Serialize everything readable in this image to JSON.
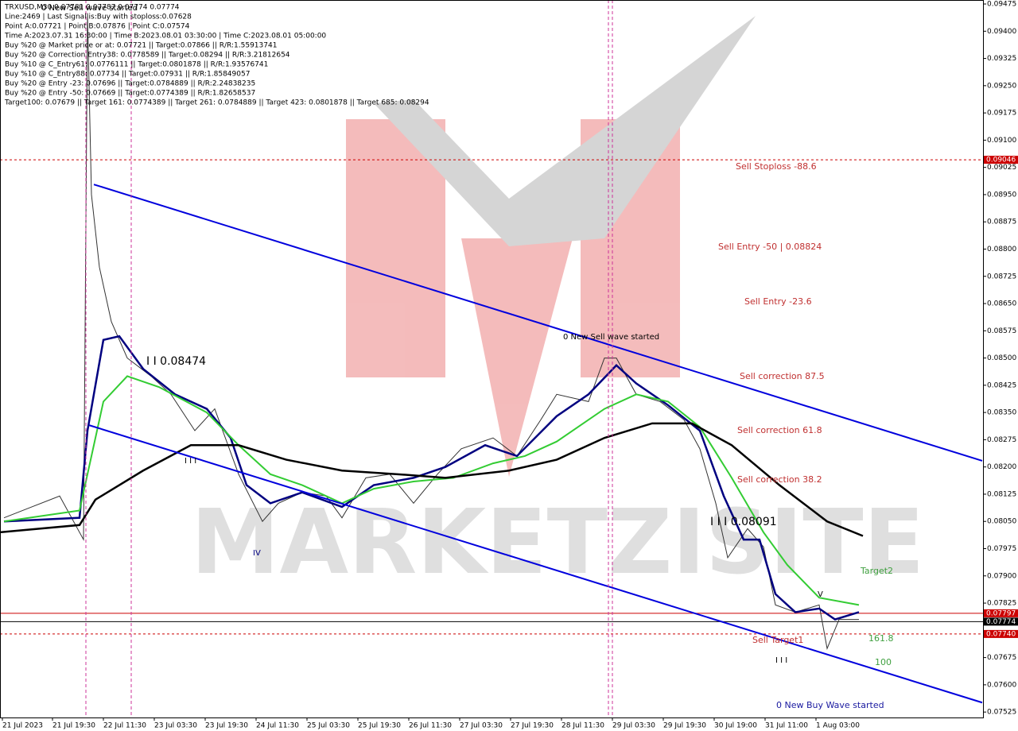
{
  "chart_data": {
    "type": "line",
    "info_lines": [
      "TRXUSD,M30  0.07781 0.07787 0.07774 0.07774",
      "Line:2469 | Last Signal is:Buy with stoploss:0.07628",
      "Point A:0.07721 | Point B:0.07876 | Point C:0.07574",
      "Time A:2023.07.31 16:30:00 | Time B:2023.08.01 03:30:00 | Time C:2023.08.01 05:00:00",
      "Buy %20 @ Market price or at: 0.07721 || Target:0.07866 || R/R:1.55913741",
      "Buy %20 @ Correction Entry38: 0.0778589 || Target:0.08294 || R/R:3.21812654",
      "Buy %10 @ C_Entry61: 0.0776111 || Target:0.0801878 || R/R:1.93576741",
      "Buy %10 @ C_Entry88: 0.07734 || Target:0.07931 || R/R:1.85849057",
      "Buy %20 @ Entry -23: 0.07696 || Target:0.0784889 || R/R:2.24838235",
      "Buy %20 @ Entry -50: 0.07669 || Target:0.0774389 || R/R:1.82658537",
      "Target100: 0.07679 || Target 161: 0.0774389 || Target 261: 0.0784889 || Target 423: 0.0801878 || Target 685: 0.08294"
    ],
    "watermark": "MARKETZISITE",
    "xlim": [
      0,
      618
    ],
    "xticks": [
      {
        "value": 1.5,
        "label": "21 Jul 2023"
      },
      {
        "value": 33,
        "label": "21 Jul 19:30"
      },
      {
        "value": 65,
        "label": "22 Jul 11:30"
      },
      {
        "value": 97,
        "label": "23 Jul 03:30"
      },
      {
        "value": 129,
        "label": "23 Jul 19:30"
      },
      {
        "value": 161,
        "label": "24 Jul 11:30"
      },
      {
        "value": 193,
        "label": "25 Jul 03:30"
      },
      {
        "value": 225,
        "label": "25 Jul 19:30"
      },
      {
        "value": 257,
        "label": "26 Jul 11:30"
      },
      {
        "value": 289,
        "label": "27 Jul 03:30"
      },
      {
        "value": 321,
        "label": "27 Jul 19:30"
      },
      {
        "value": 353,
        "label": "28 Jul 11:30"
      },
      {
        "value": 385,
        "label": "29 Jul 03:30"
      },
      {
        "value": 417,
        "label": "29 Jul 19:30"
      },
      {
        "value": 449,
        "label": "30 Jul 19:00"
      },
      {
        "value": 481,
        "label": "31 Jul 11:00"
      },
      {
        "value": 513,
        "label": "1 Aug 03:00"
      }
    ],
    "ylim": [
      0.0751,
      0.09486
    ],
    "yticks": [
      {
        "value": 0.09475,
        "label": "0.09475"
      },
      {
        "value": 0.094,
        "label": "0.09400"
      },
      {
        "value": 0.09325,
        "label": "0.09325"
      },
      {
        "value": 0.0925,
        "label": "0.09250"
      },
      {
        "value": 0.09175,
        "label": "0.09175"
      },
      {
        "value": 0.091,
        "label": "0.09100"
      },
      {
        "value": 0.09025,
        "label": "0.09025"
      },
      {
        "value": 0.0895,
        "label": "0.08950"
      },
      {
        "value": 0.08875,
        "label": "0.08875"
      },
      {
        "value": 0.088,
        "label": "0.08800"
      },
      {
        "value": 0.08725,
        "label": "0.08725"
      },
      {
        "value": 0.0865,
        "label": "0.08650"
      },
      {
        "value": 0.08575,
        "label": "0.08575"
      },
      {
        "value": 0.085,
        "label": "0.08500"
      },
      {
        "value": 0.08425,
        "label": "0.08425"
      },
      {
        "value": 0.0835,
        "label": "0.08350"
      },
      {
        "value": 0.08275,
        "label": "0.08275"
      },
      {
        "value": 0.082,
        "label": "0.08200"
      },
      {
        "value": 0.08125,
        "label": "0.08125"
      },
      {
        "value": 0.0805,
        "label": "0.08050"
      },
      {
        "value": 0.07975,
        "label": "0.07975"
      },
      {
        "value": 0.079,
        "label": "0.07900"
      },
      {
        "value": 0.07825,
        "label": "0.07825"
      },
      {
        "value": 0.07675,
        "label": "0.07675"
      },
      {
        "value": 0.076,
        "label": "0.07600"
      },
      {
        "value": 0.07525,
        "label": "0.07525"
      }
    ],
    "series": [
      {
        "color": "#333333",
        "width": 1,
        "x": [
          2.5,
          20,
          37.5,
          52.5,
          55,
          57.5,
          62.5,
          70,
          80,
          95,
          107.5,
          122.5,
          135,
          150,
          165,
          175,
          190,
          205,
          215,
          230,
          245,
          260,
          275,
          290,
          310,
          325,
          340,
          350,
          370,
          380,
          387.5,
          400,
          415,
          430,
          440,
          450,
          457.5,
          470,
          480,
          487.5,
          500,
          515,
          520,
          527.5,
          540
        ],
        "values": [
          0.0806,
          0.0809,
          0.0812,
          0.08,
          0.0945,
          0.0895,
          0.0875,
          0.086,
          0.085,
          0.0845,
          0.084,
          0.083,
          0.0836,
          0.0818,
          0.0805,
          0.081,
          0.0813,
          0.0812,
          0.0806,
          0.0817,
          0.0818,
          0.081,
          0.0818,
          0.0825,
          0.0828,
          0.0823,
          0.0833,
          0.084,
          0.0838,
          0.085,
          0.085,
          0.084,
          0.0838,
          0.0833,
          0.0825,
          0.081,
          0.0795,
          0.0803,
          0.0798,
          0.0782,
          0.078,
          0.0782,
          0.077,
          0.0778,
          0.0778
        ]
      },
      {
        "color": "#000080",
        "width": 2.5,
        "x": [
          2.5,
          50,
          55,
          65,
          75,
          90,
          110,
          130,
          145,
          155,
          170,
          190,
          215,
          235,
          260,
          280,
          305,
          325,
          350,
          370,
          387.5,
          400,
          420,
          440,
          455,
          467.5,
          477.5,
          487.5,
          500,
          515,
          525,
          540
        ],
        "values": [
          0.0805,
          0.0806,
          0.083,
          0.0855,
          0.0856,
          0.0847,
          0.084,
          0.0836,
          0.0828,
          0.0815,
          0.081,
          0.0813,
          0.0809,
          0.0815,
          0.0817,
          0.082,
          0.0826,
          0.0823,
          0.0834,
          0.084,
          0.0848,
          0.0843,
          0.0837,
          0.083,
          0.0812,
          0.08,
          0.08,
          0.0785,
          0.078,
          0.0781,
          0.0778,
          0.078
        ]
      },
      {
        "color": "#33cc33",
        "width": 2,
        "x": [
          2.5,
          50,
          65,
          80,
          100,
          130,
          150,
          170,
          190,
          215,
          235,
          260,
          285,
          310,
          330,
          350,
          380,
          400,
          420,
          440,
          460,
          480,
          495,
          515,
          540
        ],
        "values": [
          0.0805,
          0.0808,
          0.0838,
          0.0845,
          0.0842,
          0.0835,
          0.0826,
          0.0818,
          0.0815,
          0.081,
          0.0814,
          0.0816,
          0.0817,
          0.0821,
          0.0823,
          0.0827,
          0.0836,
          0.084,
          0.0838,
          0.0831,
          0.0817,
          0.0802,
          0.0793,
          0.0784,
          0.0782
        ]
      },
      {
        "color": "#000000",
        "width": 2.5,
        "x": [
          0,
          50,
          60,
          90,
          120,
          150,
          180,
          215,
          250,
          280,
          320,
          350,
          380,
          410,
          435,
          460,
          490,
          520,
          542.5
        ],
        "values": [
          0.0802,
          0.0804,
          0.0811,
          0.0819,
          0.0826,
          0.0826,
          0.0822,
          0.0819,
          0.0818,
          0.0817,
          0.0819,
          0.0822,
          0.0828,
          0.0832,
          0.0832,
          0.0826,
          0.0815,
          0.0805,
          0.0801
        ]
      },
      {
        "color": "#0000dd",
        "width": 2,
        "x": [
          59,
          617.5
        ],
        "values": [
          0.08978,
          0.08217
        ]
      },
      {
        "color": "#0000dd",
        "width": 2,
        "x": [
          56,
          617.5
        ],
        "values": [
          0.08315,
          0.07551
        ]
      }
    ],
    "levels": [
      {
        "value": 0.09046,
        "label": "0.09046",
        "color": "#cc0000",
        "dash": true
      },
      {
        "value": 0.07797,
        "label": "0.07797",
        "color": "#cc0000",
        "dash": false
      },
      {
        "value": 0.07774,
        "label": "0.07774",
        "color": "#000000",
        "dash": false
      },
      {
        "value": 0.0774,
        "label": "0.07740",
        "color": "#cc0000",
        "dash": true
      }
    ],
    "annotations": [
      {
        "text": "Sell Stoploss -88.6",
        "color": "#c03030"
      },
      {
        "text": "Sell Entry -50 | 0.08824",
        "color": "#c03030"
      },
      {
        "text": "Sell Entry -23.6",
        "color": "#c03030"
      },
      {
        "text": "Sell correction 87.5",
        "color": "#c03030"
      },
      {
        "text": "Sell correction 61.8",
        "color": "#c03030"
      },
      {
        "text": "Sell correction 38.2",
        "color": "#c03030"
      },
      {
        "text": "Target2",
        "color": "#40a040"
      },
      {
        "text": "161.8",
        "color": "#40a040"
      },
      {
        "text": "100",
        "color": "#40a040"
      },
      {
        "text": "Sell Target1",
        "color": "#c03030"
      },
      {
        "text": "0 New Buy Wave started",
        "color": "#1a1aa0"
      },
      {
        "text": "0 New Sell wave started",
        "color": "#000000"
      },
      {
        "text": "0 New Sell wave started",
        "color": "#000000"
      },
      {
        "text": "I I 0.08474",
        "color": "#000000"
      },
      {
        "text": "I I I 0.08091",
        "color": "#000000"
      },
      {
        "text": "I I I",
        "color": "#000000"
      },
      {
        "text": "IV",
        "color": "#000080"
      },
      {
        "text": "V",
        "color": "#000000"
      },
      {
        "text": "I I I",
        "color": "#000000"
      }
    ]
  }
}
